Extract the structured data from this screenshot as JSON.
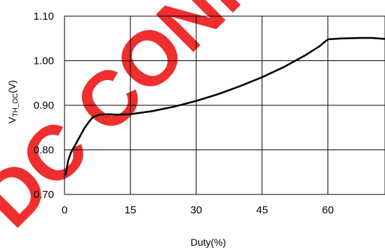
{
  "chart_data": {
    "type": "line",
    "xlabel": "Duty(%)",
    "ylabel_main": "V",
    "ylabel_sub": "TH_OC",
    "ylabel_unit": "(V)",
    "xlim": [
      0,
      73
    ],
    "ylim": [
      0.7,
      1.1
    ],
    "x_ticks": [
      0,
      15,
      30,
      45,
      60
    ],
    "x_tick_labels": [
      "0",
      "15",
      "30",
      "45",
      "60"
    ],
    "y_ticks": [
      0.7,
      0.8,
      0.9,
      1.0,
      1.1
    ],
    "y_tick_labels": [
      "0.70",
      "0.80",
      "0.90",
      "1.00",
      "1.10"
    ],
    "grid": true,
    "series": [
      {
        "color": "#000000",
        "x": [
          0.3,
          0.8,
          1.5,
          2.5,
          3.5,
          4.5,
          5.5,
          6.5,
          8,
          10,
          12,
          15,
          20,
          25,
          30,
          35,
          40,
          45,
          50,
          55,
          58,
          60,
          63,
          67,
          70,
          73
        ],
        "y": [
          0.745,
          0.775,
          0.795,
          0.812,
          0.83,
          0.848,
          0.862,
          0.874,
          0.879,
          0.88,
          0.879,
          0.88,
          0.887,
          0.897,
          0.91,
          0.925,
          0.943,
          0.963,
          0.986,
          1.013,
          1.032,
          1.048,
          1.05,
          1.051,
          1.051,
          1.049
        ]
      }
    ]
  },
  "watermark": {
    "text": "DC CONFIDENTIAL",
    "color": "#ee1c1c"
  }
}
